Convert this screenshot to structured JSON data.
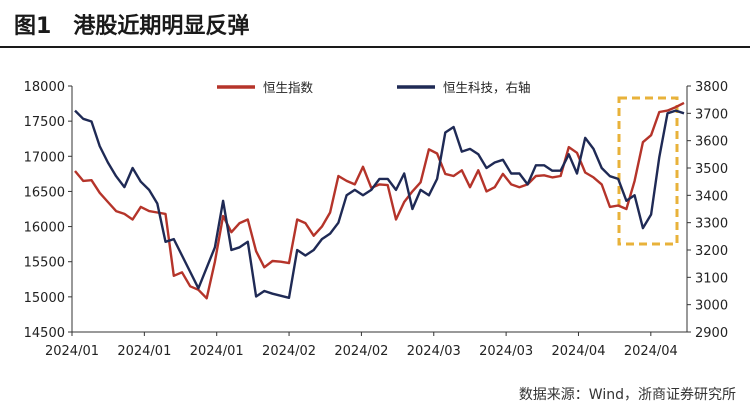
{
  "title": {
    "number": "图1",
    "text": "港股近期明显反弹"
  },
  "source": "数据来源：Wind，浙商证券研究所",
  "colors": {
    "hsi": "#b5342a",
    "hstech": "#1f2a55",
    "highlight": "#e8b23a"
  },
  "chart_data": {
    "type": "line",
    "grid": false,
    "legend_position": "top",
    "x_ticks": [
      "2024/01",
      "2024/01",
      "2024/01",
      "2024/02",
      "2024/02",
      "2024/03",
      "2024/03",
      "2024/04",
      "2024/04"
    ],
    "y_left": {
      "min": 14500,
      "max": 18000,
      "step": 500,
      "ticks": [
        "14500",
        "15000",
        "15500",
        "16000",
        "16500",
        "17000",
        "17500",
        "18000"
      ]
    },
    "y_right": {
      "min": 2900,
      "max": 3800,
      "step": 100,
      "ticks": [
        "2900",
        "3000",
        "3100",
        "3200",
        "3300",
        "3400",
        "3500",
        "3600",
        "3700",
        "3800"
      ]
    },
    "series": [
      {
        "name": "恒生指数",
        "axis": "left",
        "values": [
          16790,
          16650,
          16660,
          16480,
          16350,
          16220,
          16180,
          16100,
          16280,
          16220,
          16200,
          16180,
          15300,
          15350,
          15150,
          15100,
          14980,
          15500,
          16150,
          15920,
          16050,
          16100,
          15650,
          15420,
          15510,
          15500,
          15480,
          16100,
          16050,
          15870,
          16000,
          16200,
          16720,
          16650,
          16600,
          16850,
          16550,
          16600,
          16590,
          16100,
          16350,
          16500,
          16630,
          17100,
          17040,
          16750,
          16720,
          16800,
          16560,
          16800,
          16500,
          16560,
          16750,
          16600,
          16560,
          16600,
          16720,
          16730,
          16700,
          16720,
          17130,
          17050,
          16770,
          16700,
          16600,
          16280,
          16300,
          16250,
          16650,
          17200,
          17300,
          17630,
          17650,
          17700,
          17760
        ]
      },
      {
        "name": "恒生科技，右轴",
        "axis": "right",
        "values": [
          3710,
          3680,
          3670,
          3580,
          3520,
          3470,
          3430,
          3500,
          3450,
          3420,
          3370,
          3230,
          3240,
          3180,
          3120,
          3060,
          3210,
          3380,
          3200,
          3210,
          3230,
          3030,
          3050,
          3040,
          3025,
          3200,
          3180,
          3200,
          3240,
          3260,
          3300,
          3400,
          3420,
          3400,
          3420,
          3460,
          3460,
          3420,
          3480,
          3350,
          3420,
          3400,
          3460,
          3630,
          3650,
          3560,
          3570,
          3550,
          3500,
          3520,
          3530,
          3480,
          3480,
          3440,
          3510,
          3510,
          3490,
          3490,
          3550,
          3480,
          3610,
          3570,
          3500,
          3470,
          3460,
          3380,
          3400,
          3280,
          3330,
          3540,
          3700,
          3710,
          3700
        ]
      }
    ]
  },
  "series_x": {
    "hsi": [
      1,
      2,
      3,
      4,
      5,
      6,
      7,
      8,
      9,
      10,
      11,
      12,
      13,
      14,
      15,
      16,
      17,
      18,
      19,
      20,
      21,
      22,
      23,
      24,
      25,
      26,
      27,
      28,
      29,
      30,
      31,
      32,
      33,
      34,
      35,
      36,
      37,
      38,
      39,
      40,
      41,
      42,
      43,
      44,
      45,
      46,
      47,
      48,
      49,
      50,
      51,
      52,
      53,
      54,
      55,
      56,
      57,
      58,
      59,
      60,
      61,
      62,
      63,
      64,
      65,
      66,
      67,
      68,
      69,
      70,
      71,
      72,
      73,
      74,
      75
    ],
    "hstech": [
      1,
      2,
      3,
      4,
      5,
      6,
      7,
      8,
      9,
      10,
      11,
      12,
      13,
      14,
      15,
      16,
      18,
      19,
      20,
      21,
      22,
      23,
      24,
      25,
      27,
      28,
      29,
      30,
      31,
      32,
      33,
      34,
      35,
      36,
      37,
      38,
      39,
      40,
      41,
      42,
      43,
      44,
      45,
      46,
      47,
      48,
      49,
      50,
      51,
      52,
      53,
      54,
      55,
      56,
      57,
      58,
      59,
      60,
      61,
      62,
      63,
      64,
      65,
      66,
      67,
      68,
      69,
      70,
      71,
      72,
      73,
      74,
      75
    ]
  }
}
